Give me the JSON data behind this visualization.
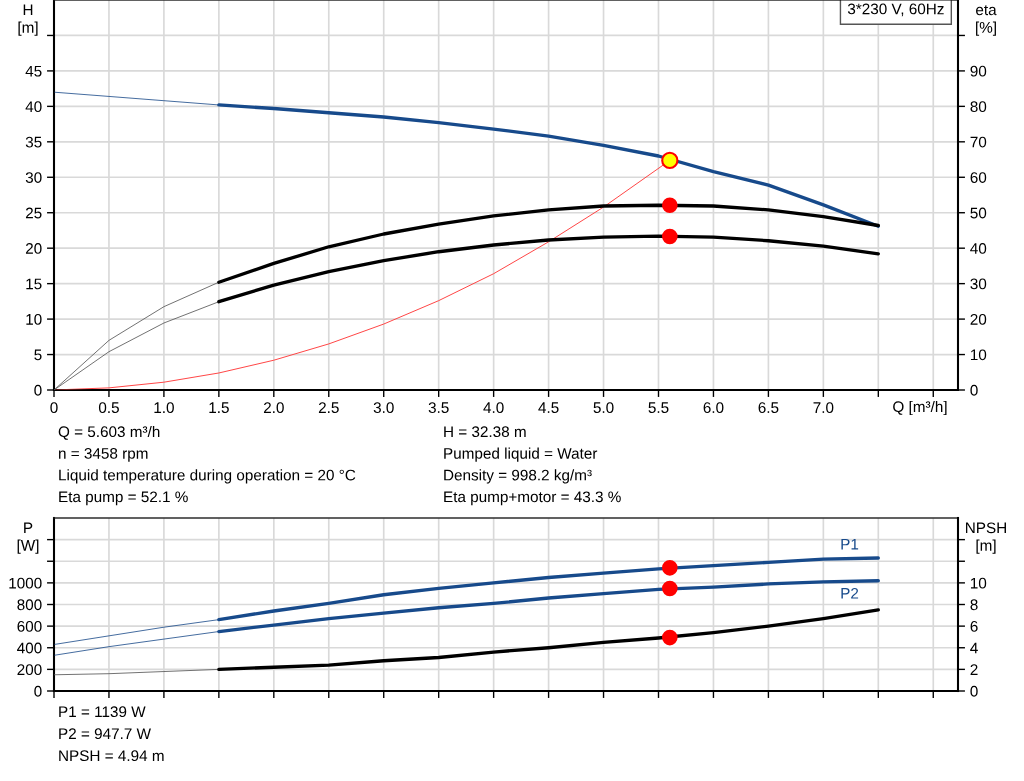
{
  "chart_data": [
    {
      "type": "line",
      "xlabel": "Q [m³/h]",
      "ylabel": "H\n[m]",
      "y2label": "eta\n[%]",
      "xlim": [
        0,
        8.225
      ],
      "xticks": [
        0,
        0.5,
        {
          "value": 1.0,
          "label": "1.0"
        },
        1.5,
        {
          "value": 2.0,
          "label": "2.0"
        },
        2.5,
        {
          "value": 3.0,
          "label": "3.0"
        },
        3.5,
        {
          "value": 4.0,
          "label": "4.0"
        },
        4.5,
        {
          "value": 5.0,
          "label": "5.0"
        },
        5.5,
        {
          "value": 6.0,
          "label": "6.0"
        },
        6.5,
        {
          "value": 7.0,
          "label": "7.0"
        },
        {
          "value": 7.5,
          "label": null
        },
        {
          "value": 8.0,
          "label": null
        }
      ],
      "ylim": [
        0,
        55
      ],
      "yticks": [
        0,
        5,
        10,
        15,
        20,
        25,
        30,
        35,
        40,
        45,
        {
          "value": 50,
          "label": null
        }
      ],
      "y2lim": [
        0,
        110
      ],
      "y2ticks": [
        0,
        10,
        20,
        30,
        40,
        50,
        60,
        70,
        80,
        90,
        {
          "value": 100,
          "label": null
        }
      ],
      "grid": true,
      "legend": false,
      "series": [
        {
          "color": "#1f4e8c",
          "x": [
            0,
            0.5,
            1.0,
            1.5
          ],
          "values": [
            42.0,
            41.4,
            40.8,
            40.2
          ]
        },
        {
          "color": "#174a8b",
          "x": [
            1.5,
            2.0,
            2.5,
            3.0,
            3.5,
            4.0,
            4.5,
            5.0,
            5.5,
            6.0,
            6.5,
            7.0,
            7.5
          ],
          "values": [
            40.2,
            39.7,
            39.1,
            38.5,
            37.7,
            36.8,
            35.8,
            34.5,
            33.0,
            30.8,
            28.9,
            26.1,
            23.1
          ]
        },
        {
          "axis": "y2",
          "color": "#555555",
          "x": [
            0,
            0.5,
            1.0,
            1.5
          ],
          "values": [
            0,
            14,
            23.5,
            30.4
          ]
        },
        {
          "axis": "y2",
          "color": "#000000",
          "x": [
            1.5,
            2.0,
            2.5,
            3.0,
            3.5,
            4.0,
            4.5,
            5.0,
            5.5,
            6.0,
            6.5,
            7.0,
            7.5
          ],
          "values": [
            30.4,
            35.7,
            40.4,
            44.0,
            46.8,
            49.1,
            50.8,
            51.9,
            52.1,
            51.9,
            50.8,
            48.9,
            46.4
          ]
        },
        {
          "axis": "y2",
          "color": "#555555",
          "x": [
            0,
            0.5,
            1.0,
            1.5
          ],
          "values": [
            0,
            10.8,
            18.9,
            24.9
          ]
        },
        {
          "axis": "y2",
          "color": "#000000",
          "x": [
            1.5,
            2.0,
            2.5,
            3.0,
            3.5,
            4.0,
            4.5,
            5.0,
            5.5,
            6.0,
            6.5,
            7.0,
            7.5
          ],
          "values": [
            24.9,
            29.6,
            33.4,
            36.5,
            39.0,
            40.9,
            42.3,
            43.1,
            43.4,
            43.1,
            42.1,
            40.6,
            38.4
          ]
        },
        {
          "color": "#ff4040",
          "x": [
            0,
            0.5,
            1.0,
            1.5,
            2.0,
            2.5,
            3.0,
            3.5,
            4.0,
            4.5,
            5.0,
            5.603
          ],
          "values": [
            0,
            0.3,
            1.1,
            2.4,
            4.2,
            6.5,
            9.3,
            12.6,
            16.4,
            20.9,
            25.8,
            32.38
          ]
        },
        {
          "type": "scatter",
          "axis": "y2",
          "color": "#ff0000",
          "marker": "circle",
          "x": [
            5.603,
            5.603
          ],
          "values": [
            52.1,
            43.3
          ]
        },
        {
          "type": "scatter",
          "color": "#ffff00",
          "marker": "circle",
          "x": [
            5.603
          ],
          "values": [
            32.38
          ]
        }
      ],
      "annotations": [
        "3*230 V, 60Hz",
        "Q = 5.603 m³/h",
        "n = 3458 rpm",
        "Liquid temperature during operation = 20 °C",
        "Eta pump = 52.1 %",
        "H = 32.38 m",
        "Pumped liquid = Water",
        "Density = 998.2 kg/m³",
        "Eta pump+motor = 43.3 %"
      ]
    },
    {
      "type": "line",
      "ylabel": "P\n[W]",
      "y2label": "NPSH\n[m]",
      "xlim": [
        0,
        8.225
      ],
      "xticks": [
        {
          "value": 0,
          "label": null
        },
        {
          "value": 0.5,
          "label": null
        },
        {
          "value": 1.0,
          "label": null
        },
        {
          "value": 1.5,
          "label": null
        },
        {
          "value": 2.0,
          "label": null
        },
        {
          "value": 2.5,
          "label": null
        },
        {
          "value": 3.0,
          "label": null
        },
        {
          "value": 3.5,
          "label": null
        },
        {
          "value": 4.0,
          "label": null
        },
        {
          "value": 4.5,
          "label": null
        },
        {
          "value": 5.0,
          "label": null
        },
        {
          "value": 5.5,
          "label": null
        },
        {
          "value": 6.0,
          "label": null
        },
        {
          "value": 6.5,
          "label": null
        },
        {
          "value": 7.0,
          "label": null
        },
        {
          "value": 7.5,
          "label": null
        },
        {
          "value": 8.0,
          "label": null
        }
      ],
      "ylim": [
        0,
        1600
      ],
      "yticks": [
        0,
        200,
        400,
        600,
        800,
        1000,
        {
          "value": 1200,
          "label": null
        },
        {
          "value": 1400,
          "label": null
        }
      ],
      "y2lim": [
        0,
        16
      ],
      "y2ticks": [
        0,
        2,
        4,
        6,
        8,
        10,
        {
          "value": 12,
          "label": null
        },
        {
          "value": 14,
          "label": null
        }
      ],
      "tick_labels": "y",
      "grid": true,
      "legend": false,
      "series": [
        {
          "color": "#1f4e8c",
          "x": [
            0,
            0.5,
            1.0,
            1.5
          ],
          "values": [
            430,
            510,
            590,
            660
          ]
        },
        {
          "name": "P1",
          "color": "#174a8b",
          "x": [
            1.5,
            2.0,
            2.5,
            3.0,
            3.5,
            4.0,
            4.5,
            5.0,
            5.5,
            6.0,
            6.5,
            7.0,
            7.5
          ],
          "values": [
            660,
            740,
            810,
            890,
            950,
            1000,
            1050,
            1090,
            1130,
            1160,
            1190,
            1220,
            1230
          ]
        },
        {
          "color": "#1f4e8c",
          "x": [
            0,
            0.5,
            1.0,
            1.5
          ],
          "values": [
            330,
            410,
            480,
            550
          ]
        },
        {
          "name": "P2",
          "color": "#174a8b",
          "x": [
            1.5,
            2.0,
            2.5,
            3.0,
            3.5,
            4.0,
            4.5,
            5.0,
            5.5,
            6.0,
            6.5,
            7.0,
            7.5
          ],
          "values": [
            550,
            610,
            670,
            720,
            770,
            810,
            860,
            900,
            940,
            960,
            990,
            1010,
            1020
          ]
        },
        {
          "axis": "y2",
          "color": "#555555",
          "x": [
            0,
            0.5,
            1.0,
            1.5
          ],
          "values": [
            1.5,
            1.6,
            1.8,
            2.0
          ]
        },
        {
          "axis": "y2",
          "color": "#000000",
          "x": [
            1.5,
            2.0,
            2.5,
            3.0,
            3.5,
            4.0,
            4.5,
            5.0,
            5.5,
            6.0,
            6.5,
            7.0,
            7.5
          ],
          "values": [
            2.0,
            2.2,
            2.4,
            2.8,
            3.1,
            3.6,
            4.0,
            4.5,
            4.9,
            5.4,
            6.0,
            6.7,
            7.5
          ]
        },
        {
          "type": "scatter",
          "color": "#ff0000",
          "marker": "circle",
          "x": [
            5.603,
            5.603
          ],
          "values": [
            1139,
            947.7
          ]
        },
        {
          "type": "scatter",
          "axis": "y2",
          "color": "#ff0000",
          "marker": "circle",
          "x": [
            5.603
          ],
          "values": [
            4.94
          ]
        }
      ],
      "annotations": [
        "P1 = 1139 W",
        "P2 = 947.7 W",
        "NPSH = 4.94 m"
      ]
    }
  ]
}
